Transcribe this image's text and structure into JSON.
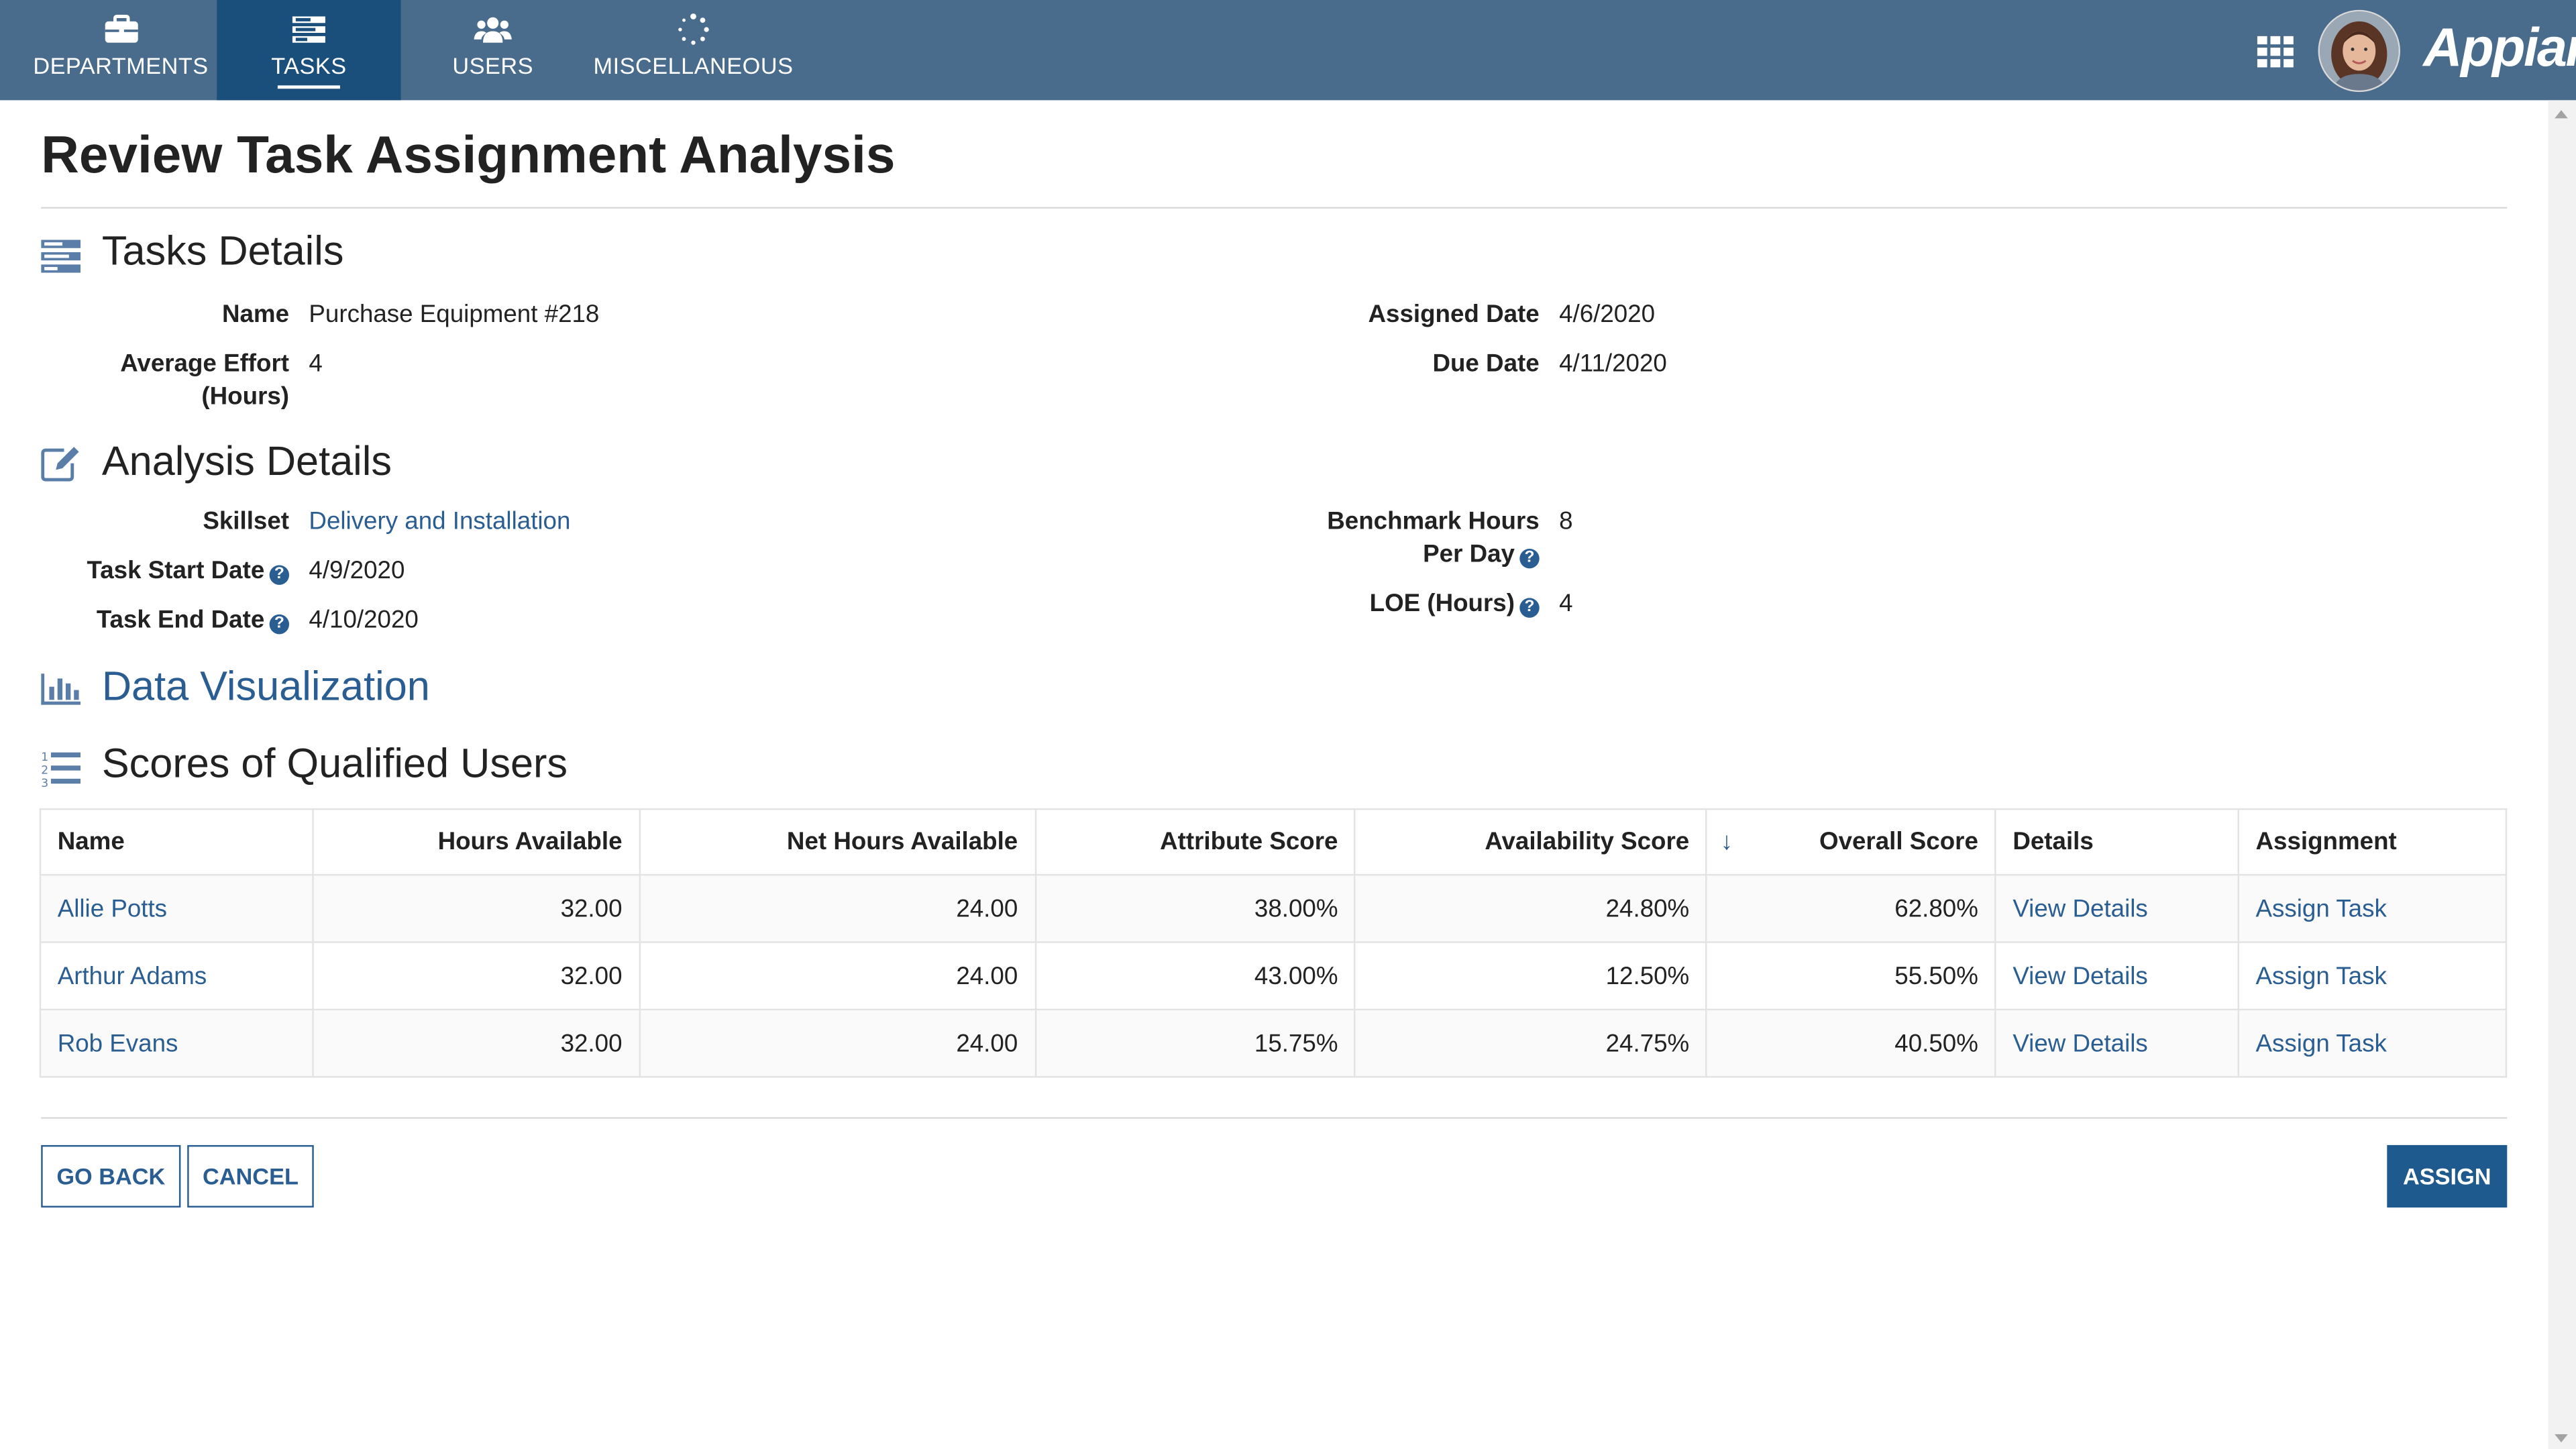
{
  "nav": {
    "tabs": [
      {
        "label": "DEPARTMENTS",
        "icon": "briefcase-icon"
      },
      {
        "label": "TASKS",
        "icon": "tasks-icon"
      },
      {
        "label": "USERS",
        "icon": "users-icon"
      },
      {
        "label": "MISCELLANEOUS",
        "icon": "spinner-icon"
      }
    ],
    "active_tab": "TASKS",
    "logo": "Appian"
  },
  "page": {
    "title": "Review Task Assignment Analysis"
  },
  "tasks_details": {
    "heading": "Tasks Details",
    "name_label": "Name",
    "name_value": "Purchase Equipment #218",
    "effort_label_1": "Average Effort",
    "effort_label_2": "(Hours)",
    "effort_value": "4",
    "assigned_label": "Assigned Date",
    "assigned_value": "4/6/2020",
    "due_label": "Due Date",
    "due_value": "4/11/2020"
  },
  "analysis_details": {
    "heading": "Analysis Details",
    "skillset_label": "Skillset",
    "skillset_value": "Delivery and Installation",
    "start_label": "Task Start Date",
    "start_value": "4/9/2020",
    "end_label": "Task End Date",
    "end_value": "4/10/2020",
    "benchmark_label_1": "Benchmark Hours",
    "benchmark_label_2": "Per Day",
    "benchmark_value": "8",
    "loe_label": "LOE (Hours)",
    "loe_value": "4",
    "help_glyph": "?"
  },
  "data_visualization": {
    "heading": "Data Visualization"
  },
  "scores": {
    "heading": "Scores of Qualified Users",
    "columns": [
      "Name",
      "Hours Available",
      "Net Hours Available",
      "Attribute Score",
      "Availability Score",
      "Overall Score",
      "Details",
      "Assignment"
    ],
    "sort_arrow": "↓",
    "rows": [
      {
        "name": "Allie Potts",
        "hours": "32.00",
        "net": "24.00",
        "attr": "38.00%",
        "avail": "24.80%",
        "overall": "62.80%",
        "details": "View Details",
        "assign": "Assign Task"
      },
      {
        "name": "Arthur Adams",
        "hours": "32.00",
        "net": "24.00",
        "attr": "43.00%",
        "avail": "12.50%",
        "overall": "55.50%",
        "details": "View Details",
        "assign": "Assign Task"
      },
      {
        "name": "Rob Evans",
        "hours": "32.00",
        "net": "24.00",
        "attr": "15.75%",
        "avail": "24.75%",
        "overall": "40.50%",
        "details": "View Details",
        "assign": "Assign Task"
      }
    ]
  },
  "buttons": {
    "go_back": "GO BACK",
    "cancel": "CANCEL",
    "assign": "ASSIGN"
  },
  "colors": {
    "nav_bg": "#496b8c",
    "nav_active": "#1b4f7b",
    "link": "#2a5d92",
    "primary_button": "#1f5a8f"
  }
}
